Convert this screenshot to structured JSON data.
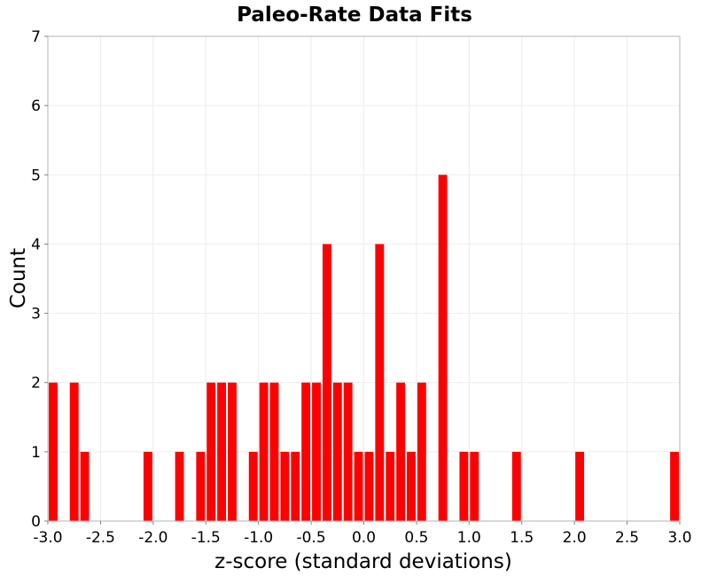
{
  "chart_data": {
    "type": "bar",
    "title": "Paleo-Rate Data Fits",
    "xlabel": "z-score (standard deviations)",
    "ylabel": "Count",
    "xlim": [
      -3.0,
      3.0
    ],
    "ylim": [
      0,
      7
    ],
    "x_ticks": [
      "-3.0",
      "-2.5",
      "-2.0",
      "-1.5",
      "-1.0",
      "-0.5",
      "0.0",
      "0.5",
      "1.0",
      "1.5",
      "2.0",
      "2.5",
      "3.0"
    ],
    "y_ticks": [
      "0",
      "1",
      "2",
      "3",
      "4",
      "5",
      "6",
      "7"
    ],
    "bin_width": 0.1,
    "grid": true,
    "bar_color": "#ff0000",
    "bins": [
      {
        "x": -2.95,
        "count": 2
      },
      {
        "x": -2.75,
        "count": 2
      },
      {
        "x": -2.65,
        "count": 1
      },
      {
        "x": -2.05,
        "count": 1
      },
      {
        "x": -1.75,
        "count": 1
      },
      {
        "x": -1.55,
        "count": 1
      },
      {
        "x": -1.45,
        "count": 2
      },
      {
        "x": -1.35,
        "count": 2
      },
      {
        "x": -1.25,
        "count": 2
      },
      {
        "x": -1.05,
        "count": 1
      },
      {
        "x": -0.95,
        "count": 2
      },
      {
        "x": -0.85,
        "count": 2
      },
      {
        "x": -0.75,
        "count": 1
      },
      {
        "x": -0.65,
        "count": 1
      },
      {
        "x": -0.55,
        "count": 2
      },
      {
        "x": -0.45,
        "count": 2
      },
      {
        "x": -0.35,
        "count": 4
      },
      {
        "x": -0.25,
        "count": 2
      },
      {
        "x": -0.15,
        "count": 2
      },
      {
        "x": -0.05,
        "count": 1
      },
      {
        "x": 0.05,
        "count": 1
      },
      {
        "x": 0.15,
        "count": 4
      },
      {
        "x": 0.25,
        "count": 1
      },
      {
        "x": 0.35,
        "count": 2
      },
      {
        "x": 0.45,
        "count": 1
      },
      {
        "x": 0.55,
        "count": 2
      },
      {
        "x": 0.75,
        "count": 5
      },
      {
        "x": 0.95,
        "count": 1
      },
      {
        "x": 1.05,
        "count": 1
      },
      {
        "x": 1.45,
        "count": 1
      },
      {
        "x": 2.05,
        "count": 1
      },
      {
        "x": 2.95,
        "count": 1
      }
    ]
  }
}
